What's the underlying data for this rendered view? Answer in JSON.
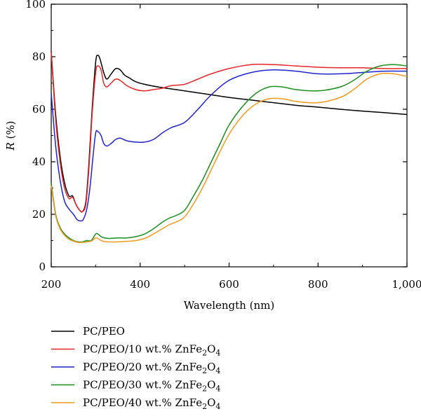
{
  "chart_data": {
    "type": "line",
    "title": "",
    "xlabel": "Wavelength (nm)",
    "ylabel_italic": "R",
    "ylabel_rest": " (%)",
    "xlim": [
      200,
      1000
    ],
    "ylim": [
      0,
      100
    ],
    "xticks": [
      200,
      400,
      600,
      800,
      1000
    ],
    "xtick_labels": [
      "200",
      "400",
      "600",
      "800",
      "1,000"
    ],
    "yticks": [
      0,
      20,
      40,
      60,
      80,
      100
    ],
    "ytick_labels": [
      "0",
      "20",
      "40",
      "60",
      "80",
      "100"
    ],
    "grid": false,
    "legend_position": "below",
    "series": [
      {
        "name": "PC/PEO",
        "legend_text": "PC/PEO",
        "legend_sub": "",
        "legend_tail": "",
        "color": "#000000",
        "x": [
          200,
          210,
          220,
          230,
          240,
          248,
          255,
          262,
          270,
          278,
          285,
          292,
          300,
          305,
          310,
          318,
          325,
          335,
          345,
          355,
          365,
          375,
          390,
          410,
          440,
          480,
          520,
          560,
          600,
          650,
          700,
          750,
          800,
          850,
          900,
          950,
          1000
        ],
        "y": [
          82,
          58,
          42,
          32,
          27,
          27,
          24,
          22,
          21,
          25,
          40,
          60,
          78,
          80.5,
          79,
          74,
          71.5,
          73.5,
          75.5,
          75,
          73,
          72,
          70.5,
          69.5,
          68.5,
          67.5,
          66.5,
          65.5,
          64.5,
          63.5,
          62.5,
          61.5,
          60.8,
          60,
          59.3,
          58.7,
          58
        ]
      },
      {
        "name": "PC/PEO/10 wt.% ZnFe2O4",
        "legend_text": "PC/PEO/10 wt.% ZnFe",
        "legend_sub": "2",
        "legend_tail": "O",
        "legend_sub2": "4",
        "color": "#e8252a",
        "x": [
          200,
          210,
          220,
          230,
          240,
          248,
          255,
          262,
          270,
          278,
          285,
          292,
          300,
          305,
          312,
          318,
          325,
          335,
          345,
          355,
          370,
          390,
          410,
          430,
          450,
          470,
          500,
          530,
          560,
          600,
          650,
          700,
          750,
          800,
          850,
          900,
          950,
          1000
        ],
        "y": [
          82,
          56,
          40,
          30,
          26,
          26.5,
          24,
          22,
          21,
          24,
          38,
          58,
          74,
          76.5,
          75,
          70,
          68.5,
          70,
          71.5,
          71,
          69,
          67.5,
          67,
          67.5,
          68,
          69,
          69.5,
          71.5,
          73.5,
          75.5,
          77,
          77,
          76.5,
          76,
          75.8,
          75.8,
          75.5,
          75.5
        ]
      },
      {
        "name": "PC/PEO/20 wt.% ZnFe2O4",
        "legend_text": "PC/PEO/20 wt.% ZnFe",
        "legend_sub": "2",
        "legend_tail": "O",
        "legend_sub2": "4",
        "color": "#1f24cc",
        "x": [
          200,
          210,
          220,
          230,
          240,
          250,
          258,
          265,
          272,
          280,
          287,
          294,
          300,
          305,
          312,
          318,
          325,
          335,
          345,
          355,
          370,
          390,
          410,
          430,
          450,
          470,
          500,
          530,
          560,
          600,
          650,
          700,
          750,
          800,
          850,
          900,
          950,
          1000
        ],
        "y": [
          66,
          46,
          33,
          25,
          22,
          20,
          18,
          17.5,
          18,
          22,
          30,
          42,
          51,
          51.5,
          50,
          47,
          46,
          47,
          48.5,
          49,
          48,
          47.5,
          47.5,
          48.5,
          51,
          53,
          55,
          60,
          65.5,
          71,
          74,
          75,
          74.5,
          73.5,
          73.5,
          74,
          74.5,
          74.5
        ]
      },
      {
        "name": "PC/PEO/30 wt.% ZnFe2O4",
        "legend_text": "PC/PEO/30 wt.% ZnFe",
        "legend_sub": "2",
        "legend_tail": "O",
        "legend_sub2": "4",
        "color": "#1c8e1c",
        "x": [
          200,
          210,
          220,
          230,
          240,
          250,
          260,
          270,
          280,
          290,
          300,
          305,
          312,
          320,
          330,
          350,
          370,
          390,
          410,
          430,
          450,
          465,
          480,
          500,
          520,
          540,
          560,
          580,
          600,
          630,
          660,
          690,
          720,
          750,
          800,
          850,
          880,
          910,
          940,
          970,
          1000
        ],
        "y": [
          32,
          20,
          15,
          12.5,
          11,
          10,
          9.5,
          9.5,
          10,
          10,
          12.5,
          12.5,
          11.5,
          11,
          10.8,
          11,
          11,
          11.5,
          12.5,
          14.5,
          17,
          18.5,
          19.5,
          21.5,
          27,
          33,
          40,
          47,
          54,
          61,
          66,
          68.5,
          68.5,
          67.5,
          67,
          68.5,
          71,
          74.5,
          76.5,
          77,
          76.5
        ]
      },
      {
        "name": "PC/PEO/40 wt.% ZnFe2O4",
        "legend_text": "PC/PEO/40 wt.% ZnFe",
        "legend_sub": "2",
        "legend_tail": "O",
        "legend_sub2": "4",
        "color": "#f39a1e",
        "x": [
          200,
          210,
          220,
          230,
          240,
          250,
          260,
          270,
          280,
          290,
          300,
          305,
          312,
          320,
          330,
          350,
          370,
          390,
          410,
          430,
          450,
          465,
          480,
          500,
          520,
          540,
          560,
          580,
          600,
          630,
          660,
          690,
          720,
          750,
          800,
          850,
          880,
          910,
          940,
          970,
          1000
        ],
        "y": [
          31,
          19.5,
          14.5,
          12,
          10.5,
          9.8,
          9.3,
          9.3,
          9.5,
          9.8,
          11,
          10.8,
          10,
          9.6,
          9.5,
          9.5,
          9.7,
          10,
          10.8,
          12.5,
          14.5,
          16,
          17,
          19,
          24,
          30,
          37,
          44,
          50.5,
          57.5,
          62,
          64,
          64,
          63,
          62.5,
          64.5,
          67.5,
          71.5,
          73.5,
          73.5,
          72.5
        ]
      }
    ]
  }
}
